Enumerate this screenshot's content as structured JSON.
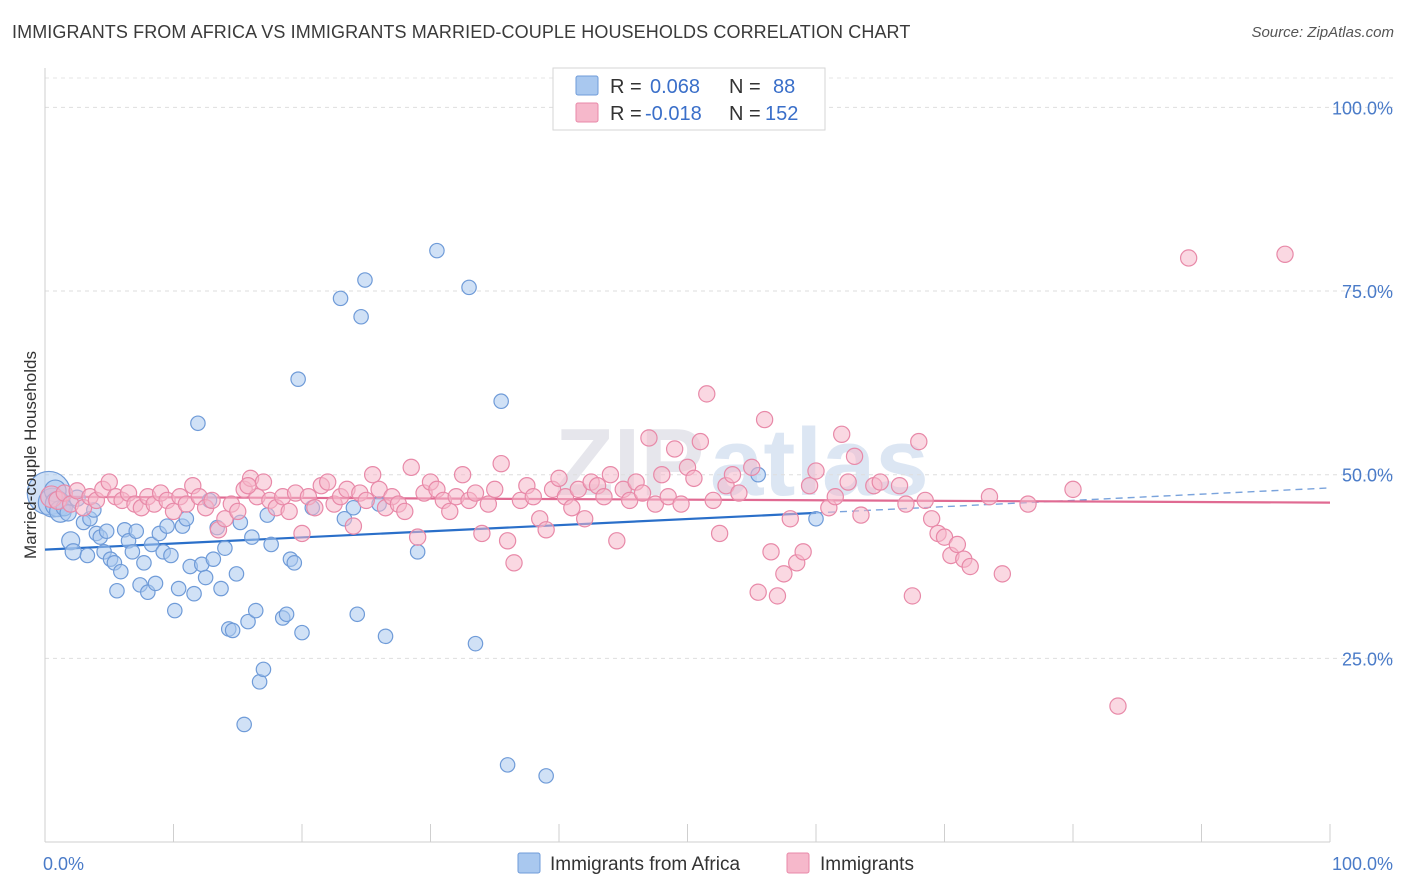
{
  "title": "IMMIGRANTS FROM AFRICA VS IMMIGRANTS MARRIED-COUPLE HOUSEHOLDS CORRELATION CHART",
  "source": "Source: ZipAtlas.com",
  "watermark": {
    "part1": "ZIP",
    "part2": "atlas"
  },
  "legend": {
    "r_label": "R =",
    "n_label": "N =",
    "rows": [
      {
        "r": "0.068",
        "n": "88",
        "color": "#a9c8ef"
      },
      {
        "r": "-0.018",
        "n": "152",
        "color": "#f6b8cb"
      }
    ]
  },
  "chart_data": {
    "type": "scatter",
    "title": "IMMIGRANTS FROM AFRICA VS IMMIGRANTS MARRIED-COUPLE HOUSEHOLDS CORRELATION CHART",
    "xlabel": "",
    "ylabel": "Married-couple Households",
    "xlim": [
      0,
      100
    ],
    "ylim": [
      0,
      104
    ],
    "y_ticks": [
      25,
      50,
      75,
      100
    ],
    "y_tick_labels": [
      "25.0%",
      "50.0%",
      "75.0%",
      "100.0%"
    ],
    "x_tick_labels": [
      "0.0%",
      "100.0%"
    ],
    "grid": "horizontal dashed",
    "legend_position": "top-center",
    "series": [
      {
        "name": "Immigrants from Africa",
        "color": "#a9c8ef",
        "stroke": "#6f9bd8",
        "trend": {
          "x0": 0,
          "y0": 39.8,
          "x1": 60,
          "y1": 44.8,
          "color": "#2a6fc9",
          "dashed_to_x": 100,
          "dashed_to_y": 48.2
        },
        "points": [
          [
            0.3,
            47.5,
            2.4
          ],
          [
            0.6,
            46.2,
            1.6
          ],
          [
            0.8,
            47.8,
            1.2
          ],
          [
            1.0,
            46.0,
            1.4
          ],
          [
            1.2,
            45.0,
            1.2
          ],
          [
            1.5,
            45.5,
            0.9
          ],
          [
            1.8,
            44.8,
            0.9
          ],
          [
            2.0,
            41.0,
            1.0
          ],
          [
            2.2,
            39.5,
            0.9
          ],
          [
            2.5,
            46.8,
            0.9
          ],
          [
            3.0,
            43.5,
            0.8
          ],
          [
            3.3,
            39.0,
            0.8
          ],
          [
            3.5,
            44.0,
            0.8
          ],
          [
            3.8,
            45.2,
            0.8
          ],
          [
            4.0,
            42.0,
            0.8
          ],
          [
            4.3,
            41.5,
            0.8
          ],
          [
            4.6,
            39.5,
            0.8
          ],
          [
            4.8,
            42.3,
            0.8
          ],
          [
            5.1,
            38.5,
            0.8
          ],
          [
            5.4,
            38.0,
            0.8
          ],
          [
            5.6,
            34.2,
            0.8
          ],
          [
            5.9,
            36.8,
            0.8
          ],
          [
            6.2,
            42.5,
            0.8
          ],
          [
            6.5,
            41.0,
            0.8
          ],
          [
            6.8,
            39.5,
            0.8
          ],
          [
            7.1,
            42.3,
            0.8
          ],
          [
            7.4,
            35.0,
            0.8
          ],
          [
            7.7,
            38.0,
            0.8
          ],
          [
            8.0,
            34.0,
            0.8
          ],
          [
            8.3,
            40.5,
            0.8
          ],
          [
            8.6,
            35.2,
            0.8
          ],
          [
            8.9,
            42.0,
            0.8
          ],
          [
            9.2,
            39.5,
            0.8
          ],
          [
            9.5,
            43.0,
            0.8
          ],
          [
            9.8,
            39.0,
            0.8
          ],
          [
            10.1,
            31.5,
            0.8
          ],
          [
            10.4,
            34.5,
            0.8
          ],
          [
            10.7,
            43.0,
            0.8
          ],
          [
            11.0,
            44.0,
            0.8
          ],
          [
            11.3,
            37.5,
            0.8
          ],
          [
            11.6,
            33.8,
            0.8
          ],
          [
            11.9,
            57.0,
            0.8
          ],
          [
            12.2,
            37.8,
            0.8
          ],
          [
            12.5,
            36.0,
            0.8
          ],
          [
            12.8,
            46.5,
            0.8
          ],
          [
            13.1,
            38.5,
            0.8
          ],
          [
            13.4,
            42.8,
            0.8
          ],
          [
            13.7,
            34.5,
            0.8
          ],
          [
            14.0,
            40.0,
            0.8
          ],
          [
            14.3,
            29.0,
            0.8
          ],
          [
            14.6,
            28.8,
            0.8
          ],
          [
            14.9,
            36.5,
            0.8
          ],
          [
            15.2,
            43.5,
            0.8
          ],
          [
            15.5,
            16.0,
            0.8
          ],
          [
            15.8,
            30.0,
            0.8
          ],
          [
            16.1,
            41.5,
            0.8
          ],
          [
            16.4,
            31.5,
            0.8
          ],
          [
            16.7,
            21.8,
            0.8
          ],
          [
            17.0,
            23.5,
            0.8
          ],
          [
            17.3,
            44.5,
            0.8
          ],
          [
            17.6,
            40.5,
            0.8
          ],
          [
            18.5,
            30.5,
            0.8
          ],
          [
            18.8,
            31.0,
            0.8
          ],
          [
            19.1,
            38.5,
            0.8
          ],
          [
            19.4,
            38.0,
            0.8
          ],
          [
            19.7,
            63.0,
            0.8
          ],
          [
            20.0,
            28.5,
            0.8
          ],
          [
            20.8,
            45.5,
            0.8
          ],
          [
            23.0,
            74.0,
            0.8
          ],
          [
            23.3,
            44.0,
            0.8
          ],
          [
            24.0,
            45.5,
            0.8
          ],
          [
            24.3,
            31.0,
            0.8
          ],
          [
            24.6,
            71.5,
            0.8
          ],
          [
            24.9,
            76.5,
            0.8
          ],
          [
            26.0,
            46.0,
            0.8
          ],
          [
            26.5,
            28.0,
            0.8
          ],
          [
            29.0,
            39.5,
            0.8
          ],
          [
            30.5,
            80.5,
            0.8
          ],
          [
            33.0,
            75.5,
            0.8
          ],
          [
            33.5,
            27.0,
            0.8
          ],
          [
            35.5,
            60.0,
            0.8
          ],
          [
            36.0,
            10.5,
            0.8
          ],
          [
            39.0,
            9.0,
            0.8
          ],
          [
            55.5,
            50.0,
            0.8
          ],
          [
            60.0,
            44.0,
            0.8
          ]
        ]
      },
      {
        "name": "Immigrants",
        "color": "#f6b8cb",
        "stroke": "#e889a8",
        "trend": {
          "x0": 0,
          "y0": 47.0,
          "x1": 100,
          "y1": 46.2,
          "color": "#e06a92"
        },
        "points": [
          [
            0.5,
            47.0,
            1.2
          ],
          [
            1.0,
            46.5,
            1.0
          ],
          [
            1.5,
            47.5,
            0.9
          ],
          [
            2.0,
            46.0,
            0.9
          ],
          [
            2.5,
            47.8,
            0.9
          ],
          [
            3.0,
            45.5,
            0.9
          ],
          [
            3.5,
            47.0,
            0.9
          ],
          [
            4.0,
            46.5,
            0.9
          ],
          [
            4.5,
            48.0,
            0.9
          ],
          [
            5.0,
            49.0,
            0.9
          ],
          [
            5.5,
            47.0,
            0.9
          ],
          [
            6.0,
            46.5,
            0.9
          ],
          [
            6.5,
            47.5,
            0.9
          ],
          [
            7.0,
            46.0,
            0.9
          ],
          [
            7.5,
            45.5,
            0.9
          ],
          [
            8.0,
            47.0,
            0.9
          ],
          [
            8.5,
            46.0,
            0.9
          ],
          [
            9.0,
            47.5,
            0.9
          ],
          [
            9.5,
            46.5,
            0.9
          ],
          [
            10.0,
            45.0,
            0.9
          ],
          [
            10.5,
            47.0,
            0.9
          ],
          [
            11.0,
            46.0,
            0.9
          ],
          [
            11.5,
            48.5,
            0.9
          ],
          [
            12.0,
            47.0,
            0.9
          ],
          [
            12.5,
            45.5,
            0.9
          ],
          [
            13.0,
            46.5,
            0.9
          ],
          [
            13.5,
            42.5,
            0.9
          ],
          [
            14.0,
            44.0,
            0.9
          ],
          [
            14.5,
            46.0,
            0.9
          ],
          [
            15.0,
            45.0,
            0.9
          ],
          [
            15.5,
            48.0,
            0.9
          ],
          [
            16.0,
            49.5,
            0.9
          ],
          [
            16.5,
            47.0,
            0.9
          ],
          [
            17.0,
            49.0,
            0.9
          ],
          [
            17.5,
            46.5,
            0.9
          ],
          [
            18.0,
            45.5,
            0.9
          ],
          [
            18.5,
            47.0,
            0.9
          ],
          [
            19.0,
            45.0,
            0.9
          ],
          [
            19.5,
            47.5,
            0.9
          ],
          [
            20.0,
            42.0,
            0.9
          ],
          [
            20.5,
            47.0,
            0.9
          ],
          [
            21.0,
            45.5,
            0.9
          ],
          [
            21.5,
            48.5,
            0.9
          ],
          [
            22.0,
            49.0,
            0.9
          ],
          [
            22.5,
            46.0,
            0.9
          ],
          [
            23.0,
            47.0,
            0.9
          ],
          [
            23.5,
            48.0,
            0.9
          ],
          [
            24.0,
            43.0,
            0.9
          ],
          [
            24.5,
            47.5,
            0.9
          ],
          [
            25.0,
            46.5,
            0.9
          ],
          [
            25.5,
            50.0,
            0.9
          ],
          [
            26.0,
            48.0,
            0.9
          ],
          [
            26.5,
            45.5,
            0.9
          ],
          [
            27.0,
            47.0,
            0.9
          ],
          [
            27.5,
            46.0,
            0.9
          ],
          [
            28.0,
            45.0,
            0.9
          ],
          [
            28.5,
            51.0,
            0.9
          ],
          [
            29.0,
            41.5,
            0.9
          ],
          [
            29.5,
            47.5,
            0.9
          ],
          [
            30.0,
            49.0,
            0.9
          ],
          [
            30.5,
            48.0,
            0.9
          ],
          [
            31.0,
            46.5,
            0.9
          ],
          [
            31.5,
            45.0,
            0.9
          ],
          [
            32.0,
            47.0,
            0.9
          ],
          [
            32.5,
            50.0,
            0.9
          ],
          [
            33.0,
            46.5,
            0.9
          ],
          [
            33.5,
            47.5,
            0.9
          ],
          [
            34.0,
            42.0,
            0.9
          ],
          [
            34.5,
            46.0,
            0.9
          ],
          [
            35.0,
            48.0,
            0.9
          ],
          [
            35.5,
            51.5,
            0.9
          ],
          [
            36.0,
            41.0,
            0.9
          ],
          [
            36.5,
            38.0,
            0.9
          ],
          [
            37.0,
            46.5,
            0.9
          ],
          [
            37.5,
            48.5,
            0.9
          ],
          [
            38.0,
            47.0,
            0.9
          ],
          [
            38.5,
            44.0,
            0.9
          ],
          [
            39.0,
            42.5,
            0.9
          ],
          [
            39.5,
            48.0,
            0.9
          ],
          [
            40.0,
            49.5,
            0.9
          ],
          [
            40.5,
            47.0,
            0.9
          ],
          [
            41.0,
            45.5,
            0.9
          ],
          [
            41.5,
            48.0,
            0.9
          ],
          [
            42.0,
            44.0,
            0.9
          ],
          [
            42.5,
            49.0,
            0.9
          ],
          [
            43.0,
            48.5,
            0.9
          ],
          [
            43.5,
            47.0,
            0.9
          ],
          [
            44.0,
            50.0,
            0.9
          ],
          [
            44.5,
            41.0,
            0.9
          ],
          [
            45.0,
            48.0,
            0.9
          ],
          [
            45.5,
            46.5,
            0.9
          ],
          [
            46.0,
            49.0,
            0.9
          ],
          [
            46.5,
            47.5,
            0.9
          ],
          [
            47.0,
            55.0,
            0.9
          ],
          [
            47.5,
            46.0,
            0.9
          ],
          [
            48.0,
            50.0,
            0.9
          ],
          [
            48.5,
            47.0,
            0.9
          ],
          [
            49.0,
            53.5,
            0.9
          ],
          [
            49.5,
            46.0,
            0.9
          ],
          [
            50.0,
            51.0,
            0.9
          ],
          [
            50.5,
            49.5,
            0.9
          ],
          [
            51.0,
            54.5,
            0.9
          ],
          [
            51.5,
            61.0,
            0.9
          ],
          [
            52.0,
            46.5,
            0.9
          ],
          [
            52.5,
            42.0,
            0.9
          ],
          [
            53.0,
            48.5,
            0.9
          ],
          [
            53.5,
            50.0,
            0.9
          ],
          [
            54.0,
            47.5,
            0.9
          ],
          [
            55.0,
            51.0,
            0.9
          ],
          [
            55.5,
            34.0,
            0.9
          ],
          [
            56.0,
            57.5,
            0.9
          ],
          [
            56.5,
            39.5,
            0.9
          ],
          [
            57.0,
            33.5,
            0.9
          ],
          [
            57.5,
            36.5,
            0.9
          ],
          [
            58.0,
            44.0,
            0.9
          ],
          [
            58.5,
            38.0,
            0.9
          ],
          [
            59.0,
            39.5,
            0.9
          ],
          [
            59.5,
            48.5,
            0.9
          ],
          [
            60.0,
            50.5,
            0.9
          ],
          [
            61.0,
            45.5,
            0.9
          ],
          [
            61.5,
            47.0,
            0.9
          ],
          [
            62.0,
            55.5,
            0.9
          ],
          [
            62.5,
            49.0,
            0.9
          ],
          [
            63.0,
            52.5,
            0.9
          ],
          [
            63.5,
            44.5,
            0.9
          ],
          [
            64.5,
            48.5,
            0.9
          ],
          [
            65.0,
            49.0,
            0.9
          ],
          [
            66.5,
            48.5,
            0.9
          ],
          [
            67.0,
            46.0,
            0.9
          ],
          [
            67.5,
            33.5,
            0.9
          ],
          [
            68.0,
            54.5,
            0.9
          ],
          [
            68.5,
            46.5,
            0.9
          ],
          [
            69.0,
            44.0,
            0.9
          ],
          [
            69.5,
            42.0,
            0.9
          ],
          [
            70.0,
            41.5,
            0.9
          ],
          [
            70.5,
            39.0,
            0.9
          ],
          [
            71.0,
            40.5,
            0.9
          ],
          [
            71.5,
            38.5,
            0.9
          ],
          [
            72.0,
            37.5,
            0.9
          ],
          [
            73.5,
            47.0,
            0.9
          ],
          [
            74.5,
            36.5,
            0.9
          ],
          [
            76.5,
            46.0,
            0.9
          ],
          [
            80.0,
            48.0,
            0.9
          ],
          [
            83.5,
            18.5,
            0.9
          ],
          [
            89.0,
            79.5,
            0.9
          ],
          [
            96.5,
            80.0,
            0.9
          ],
          [
            15.8,
            48.5,
            0.9
          ]
        ]
      }
    ]
  },
  "bottom_legend": [
    {
      "label": "Immigrants from Africa",
      "color": "#a9c8ef",
      "stroke": "#6f9bd8"
    },
    {
      "label": "Immigrants",
      "color": "#f6b8cb",
      "stroke": "#e889a8"
    }
  ]
}
